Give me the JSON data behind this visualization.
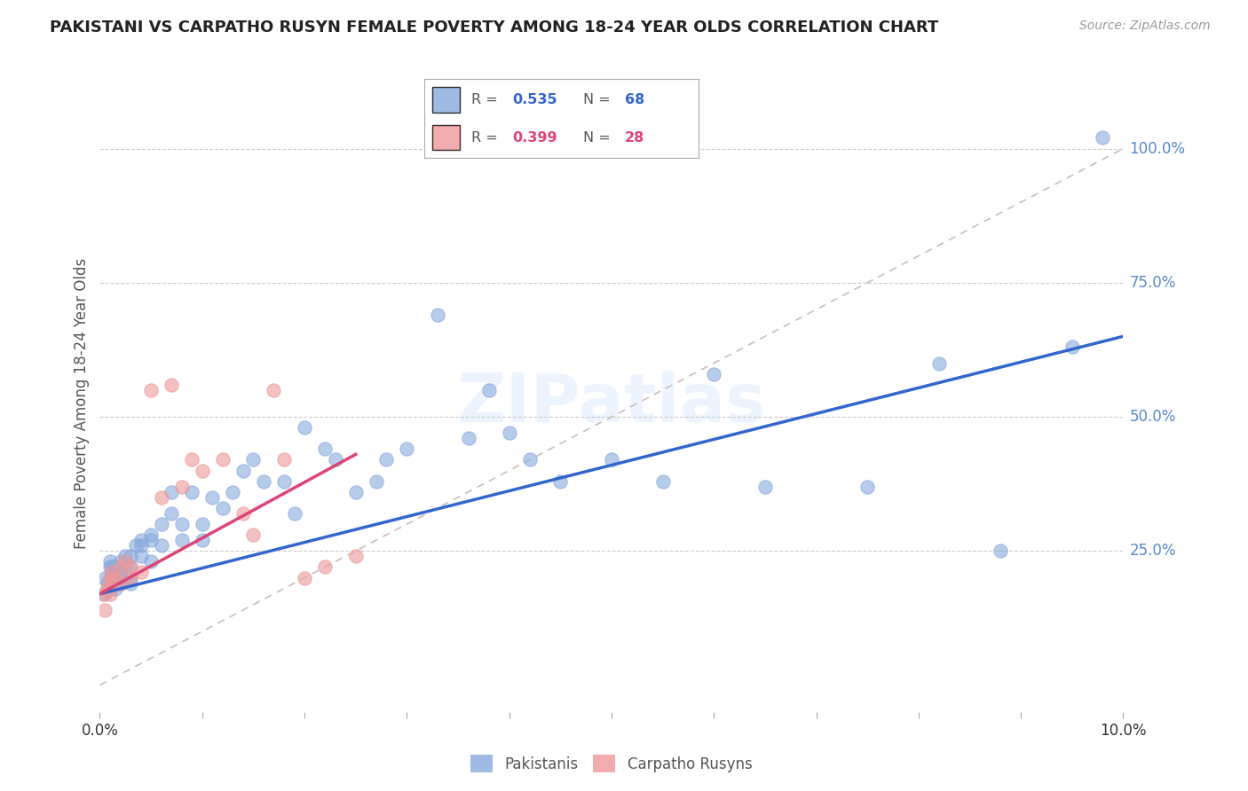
{
  "title": "PAKISTANI VS CARPATHO RUSYN FEMALE POVERTY AMONG 18-24 YEAR OLDS CORRELATION CHART",
  "source": "Source: ZipAtlas.com",
  "ylabel": "Female Poverty Among 18-24 Year Olds",
  "ytick_labels": [
    "100.0%",
    "75.0%",
    "50.0%",
    "25.0%"
  ],
  "ytick_values": [
    1.0,
    0.75,
    0.5,
    0.25
  ],
  "pakistani_color": "#88AADD",
  "carpatho_color": "#EE9999",
  "trendline_pakistani_color": "#3366CC",
  "trendline_carpatho_color": "#DD4477",
  "diagonal_color": "#CCBBBB",
  "watermark_color": "#DDEEFF",
  "background_color": "#FFFFFF",
  "grid_color": "#CCCCCC",
  "xlim": [
    0.0,
    0.1
  ],
  "ylim": [
    -0.05,
    1.1
  ],
  "r_pak": "0.535",
  "n_pak": "68",
  "r_car": "0.399",
  "n_car": "28",
  "pakistani_x": [
    0.0005,
    0.0005,
    0.0007,
    0.001,
    0.001,
    0.001,
    0.001,
    0.0012,
    0.0012,
    0.0015,
    0.0015,
    0.0015,
    0.002,
    0.002,
    0.002,
    0.002,
    0.0025,
    0.0025,
    0.003,
    0.003,
    0.003,
    0.003,
    0.0035,
    0.004,
    0.004,
    0.004,
    0.005,
    0.005,
    0.005,
    0.006,
    0.006,
    0.007,
    0.007,
    0.008,
    0.008,
    0.009,
    0.01,
    0.01,
    0.011,
    0.012,
    0.013,
    0.014,
    0.015,
    0.016,
    0.018,
    0.019,
    0.02,
    0.022,
    0.023,
    0.025,
    0.027,
    0.028,
    0.03,
    0.033,
    0.036,
    0.038,
    0.04,
    0.042,
    0.045,
    0.05,
    0.055,
    0.06,
    0.065,
    0.075,
    0.082,
    0.088,
    0.095,
    0.098
  ],
  "pakistani_y": [
    0.17,
    0.2,
    0.19,
    0.22,
    0.2,
    0.18,
    0.23,
    0.21,
    0.22,
    0.2,
    0.18,
    0.22,
    0.23,
    0.21,
    0.2,
    0.19,
    0.24,
    0.22,
    0.24,
    0.22,
    0.2,
    0.19,
    0.26,
    0.27,
    0.26,
    0.24,
    0.28,
    0.27,
    0.23,
    0.3,
    0.26,
    0.36,
    0.32,
    0.3,
    0.27,
    0.36,
    0.3,
    0.27,
    0.35,
    0.33,
    0.36,
    0.4,
    0.42,
    0.38,
    0.38,
    0.32,
    0.48,
    0.44,
    0.42,
    0.36,
    0.38,
    0.42,
    0.44,
    0.69,
    0.46,
    0.55,
    0.47,
    0.42,
    0.38,
    0.42,
    0.38,
    0.58,
    0.37,
    0.37,
    0.6,
    0.25,
    0.63,
    1.02
  ],
  "carpatho_x": [
    0.0003,
    0.0005,
    0.0007,
    0.001,
    0.001,
    0.001,
    0.0012,
    0.0015,
    0.002,
    0.002,
    0.0025,
    0.003,
    0.003,
    0.004,
    0.005,
    0.006,
    0.007,
    0.008,
    0.009,
    0.01,
    0.012,
    0.014,
    0.015,
    0.017,
    0.018,
    0.02,
    0.022,
    0.025
  ],
  "carpatho_y": [
    0.17,
    0.14,
    0.18,
    0.2,
    0.19,
    0.17,
    0.21,
    0.2,
    0.22,
    0.19,
    0.23,
    0.22,
    0.2,
    0.21,
    0.55,
    0.35,
    0.56,
    0.37,
    0.42,
    0.4,
    0.42,
    0.32,
    0.28,
    0.55,
    0.42,
    0.2,
    0.22,
    0.24
  ]
}
